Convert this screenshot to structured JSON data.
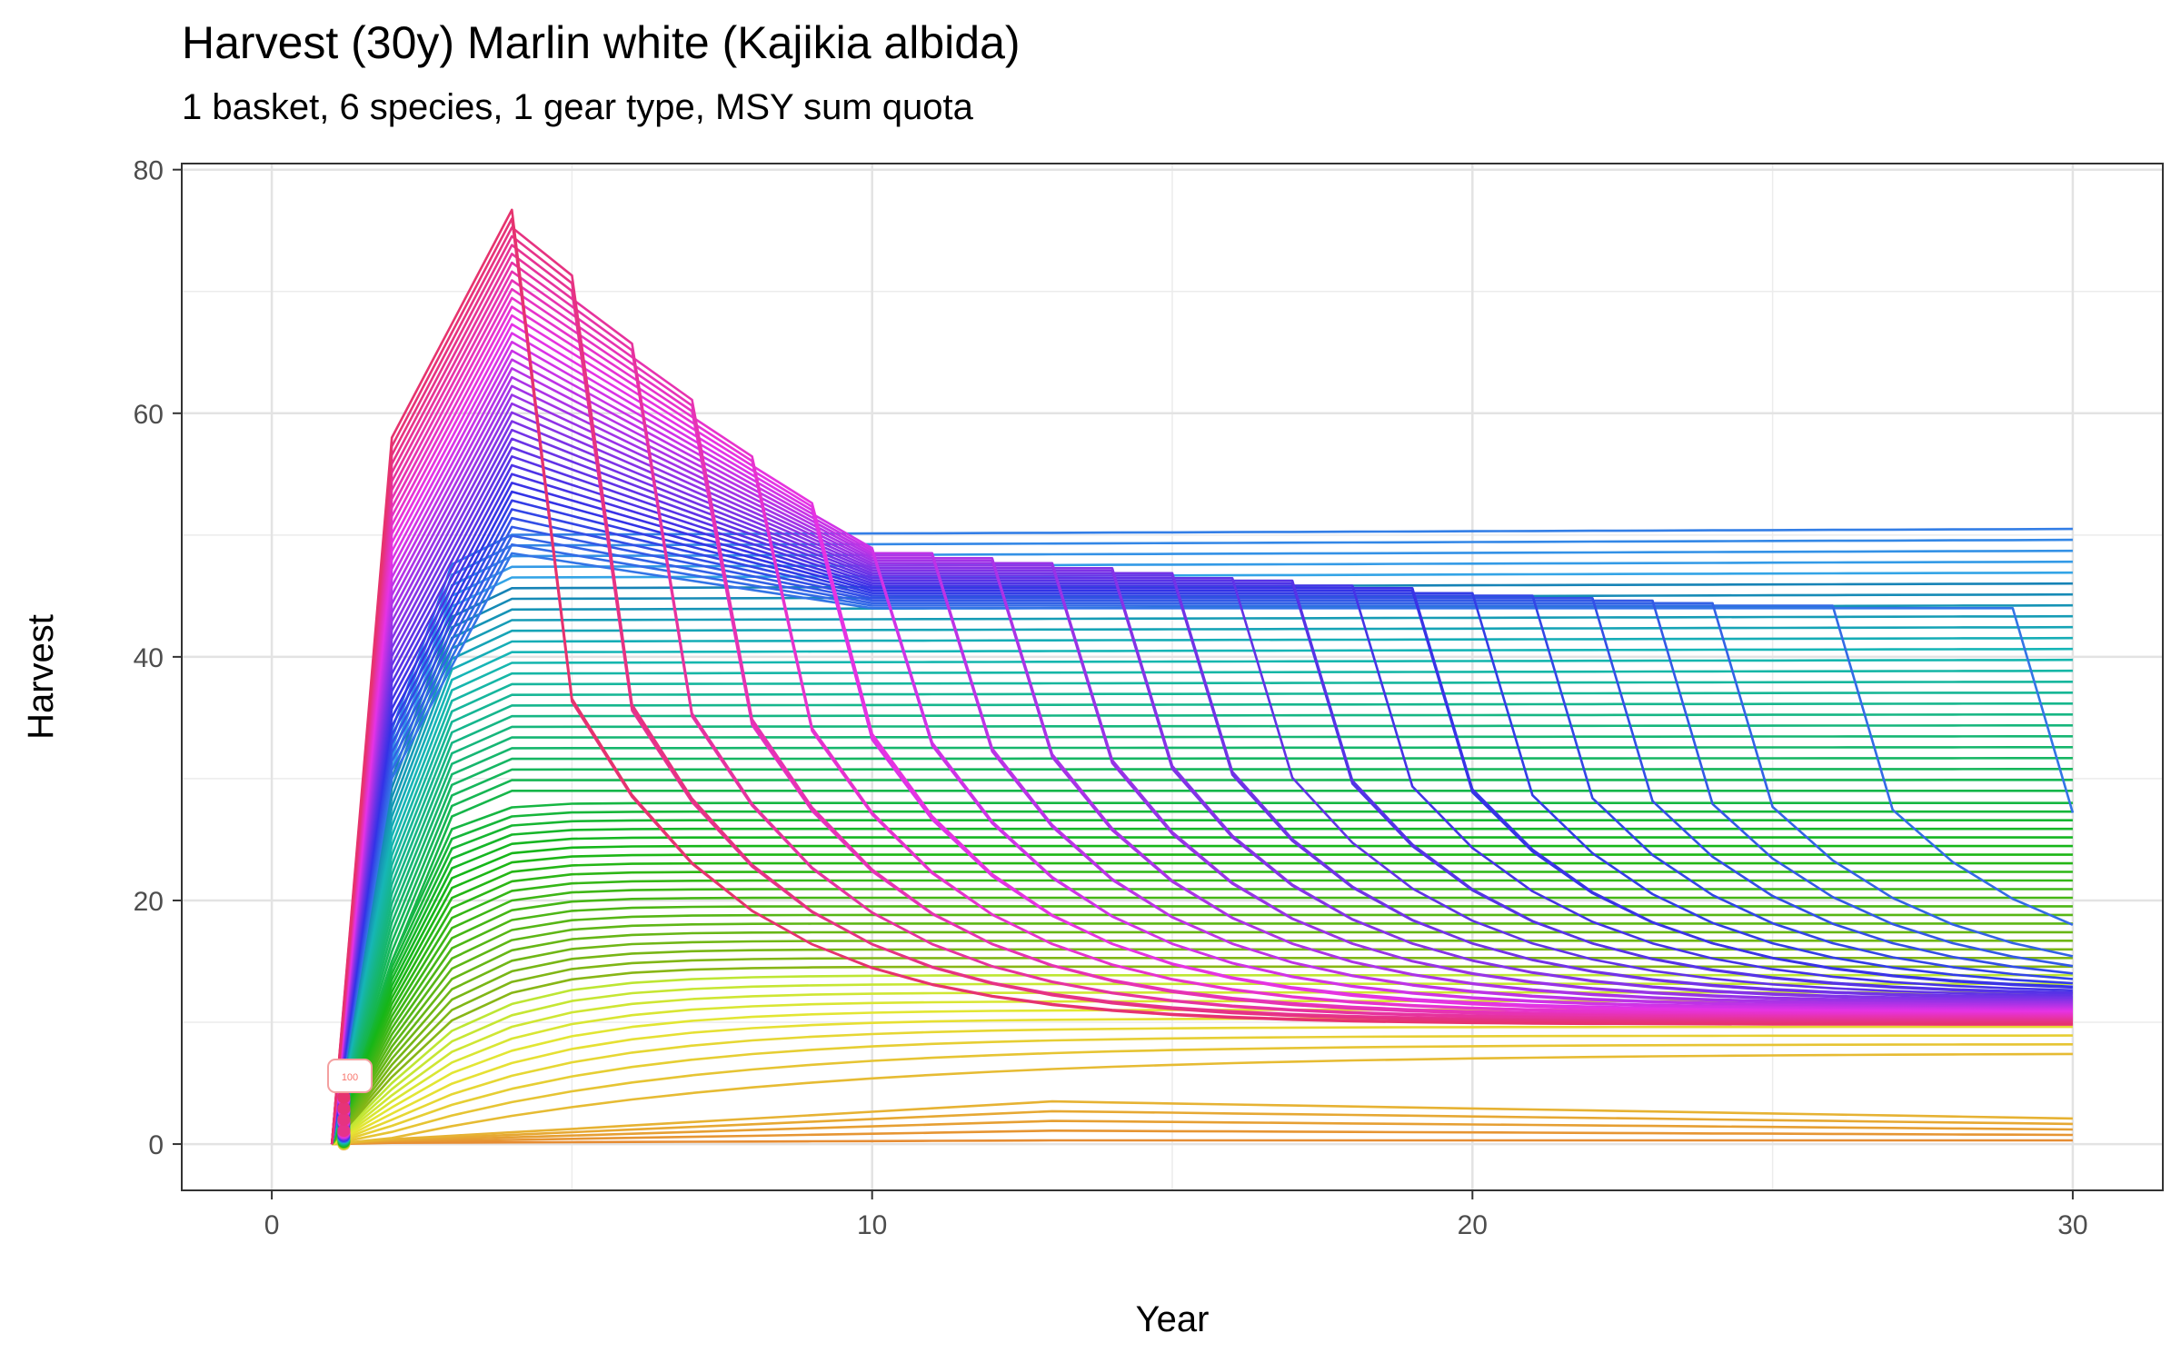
{
  "chart_data": {
    "type": "line",
    "title": "Harvest (30y) Marlin white (Kajikia albida)",
    "subtitle": "1 basket, 6 species, 1 gear type, MSY sum quota",
    "xlabel": "Year",
    "ylabel": "Harvest",
    "xlim": [
      -1.5,
      31.5
    ],
    "ylim": [
      -3.8,
      80.5
    ],
    "x_ticks": [
      0,
      10,
      20,
      30
    ],
    "x_tick_labels": [
      "0",
      "10",
      "20",
      "30"
    ],
    "x_minor_ticks": [
      5,
      15,
      25
    ],
    "y_ticks": [
      0,
      20,
      40,
      60,
      80
    ],
    "y_tick_labels": [
      "0",
      "20",
      "40",
      "60",
      "80"
    ],
    "y_minor_ticks": [
      10,
      30,
      50,
      70
    ],
    "grid": true,
    "series_count": 100,
    "color_scale": "hue ramp from orange-red through yellow-green, green, cyan, blue, purple to pink",
    "series_families": [
      {
        "description": "low stable curves",
        "count": 5,
        "y2": [
          0.1,
          0.4
        ],
        "plateau": [
          0.3,
          3.5
        ],
        "end": [
          0.3,
          2.1
        ]
      },
      {
        "description": "rising to plateau",
        "count": 30,
        "y2": [
          0.5,
          15
        ],
        "plateau": [
          7.5,
          28
        ],
        "end": [
          7.5,
          28
        ]
      },
      {
        "description": "rising to high plateau",
        "count": 25,
        "y2": [
          15,
          34
        ],
        "plateau": [
          29,
          50
        ],
        "end": [
          29,
          50.5
        ]
      },
      {
        "description": "spike then drop to ~10-15",
        "count": 40,
        "peak": [
          48,
          76.7
        ],
        "drop_year": [
          4,
          29
        ],
        "end": [
          9.5,
          14
        ]
      }
    ],
    "annotation": "100"
  }
}
